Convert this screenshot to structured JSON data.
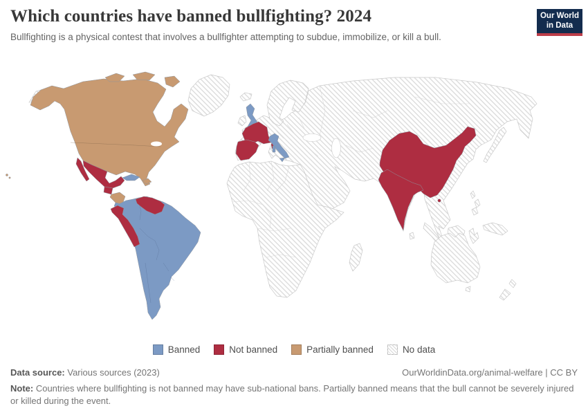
{
  "header": {
    "title": "Which countries have banned bullfighting? 2024",
    "subtitle": "Bullfighting is a physical contest that involves a bullfighter attempting to subdue, immobilize, or kill a bull.",
    "logo": {
      "line1": "Our World",
      "line2": "in Data",
      "bg_color": "#132c4e",
      "accent_color": "#bd3d49"
    }
  },
  "legend": {
    "items": [
      {
        "key": "banned",
        "label": "Banned",
        "color": "#7c9ac4"
      },
      {
        "key": "not_banned",
        "label": "Not banned",
        "color": "#ae2d41"
      },
      {
        "key": "partially_banned",
        "label": "Partially banned",
        "color": "#c89a71"
      },
      {
        "key": "no_data",
        "label": "No data",
        "color": "hatch"
      }
    ]
  },
  "footer": {
    "datasource_label": "Data source:",
    "datasource_value": " Various sources (2023)",
    "link": "OurWorldinData.org/animal-welfare | CC BY",
    "note_label": "Note:",
    "note_value": " Countries where bullfighting is not banned may have sub-national bans. Partially banned means that the bull cannot be severely injured or killed during the event."
  },
  "chart_data": {
    "type": "choropleth_map",
    "title": "Which countries have banned bullfighting? 2024",
    "year": 2024,
    "categories": [
      "Banned",
      "Not banned",
      "Partially banned",
      "No data"
    ],
    "legend_position": "bottom",
    "colors": {
      "banned": "#7c9ac4",
      "not_banned": "#ae2d41",
      "partially_banned": "#c89a71",
      "no_data": "hatch",
      "sea": "#ffffff"
    },
    "values": {
      "Banned": [
        "United Kingdom",
        "Italy",
        "Cuba",
        "Costa Rica",
        "Panama",
        "Colombia",
        "Brazil",
        "Bolivia",
        "Paraguay",
        "Uruguay",
        "Argentina",
        "Chile"
      ],
      "Not banned": [
        "Spain",
        "Portugal",
        "France",
        "Mexico",
        "Guatemala",
        "Venezuela",
        "Ecuador",
        "Peru",
        "China",
        "India"
      ],
      "Partially banned": [
        "Canada",
        "United States",
        "Honduras",
        "Nicaragua",
        "Dominican Republic"
      ],
      "No data": [
        "All other countries (shown hatched)"
      ]
    }
  }
}
